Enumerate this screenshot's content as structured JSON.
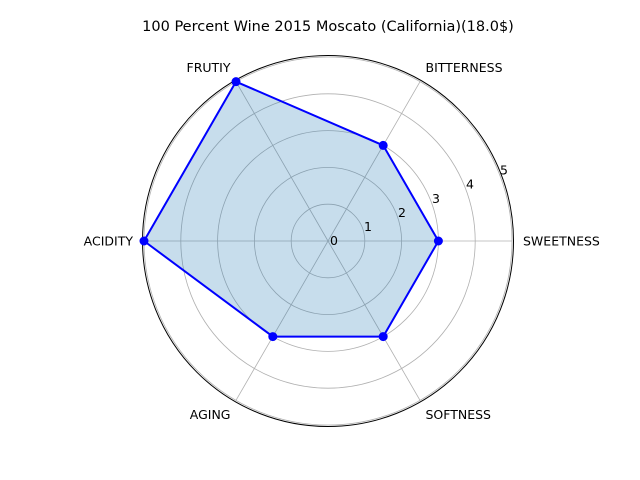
{
  "chart_data": {
    "type": "radar",
    "title": "100 Percent Wine 2015 Moscato (California)(18.0$)",
    "categories": [
      "SWEETNESS",
      "BITTERNESS",
      "FRUTIY",
      "ACIDITY",
      "AGING",
      "SOFTNESS"
    ],
    "values": [
      3,
      3,
      5,
      5,
      3,
      3
    ],
    "radial_ticks": [
      "0",
      "1",
      "2",
      "3",
      "4",
      "5"
    ],
    "rlim": [
      0,
      5
    ],
    "grid": true,
    "legend": "none",
    "colors": {
      "line": "#0000ff",
      "marker": "#0000ff",
      "fill": "#1f77b4",
      "grid": "#b0b0b0",
      "frame": "#000000"
    }
  }
}
